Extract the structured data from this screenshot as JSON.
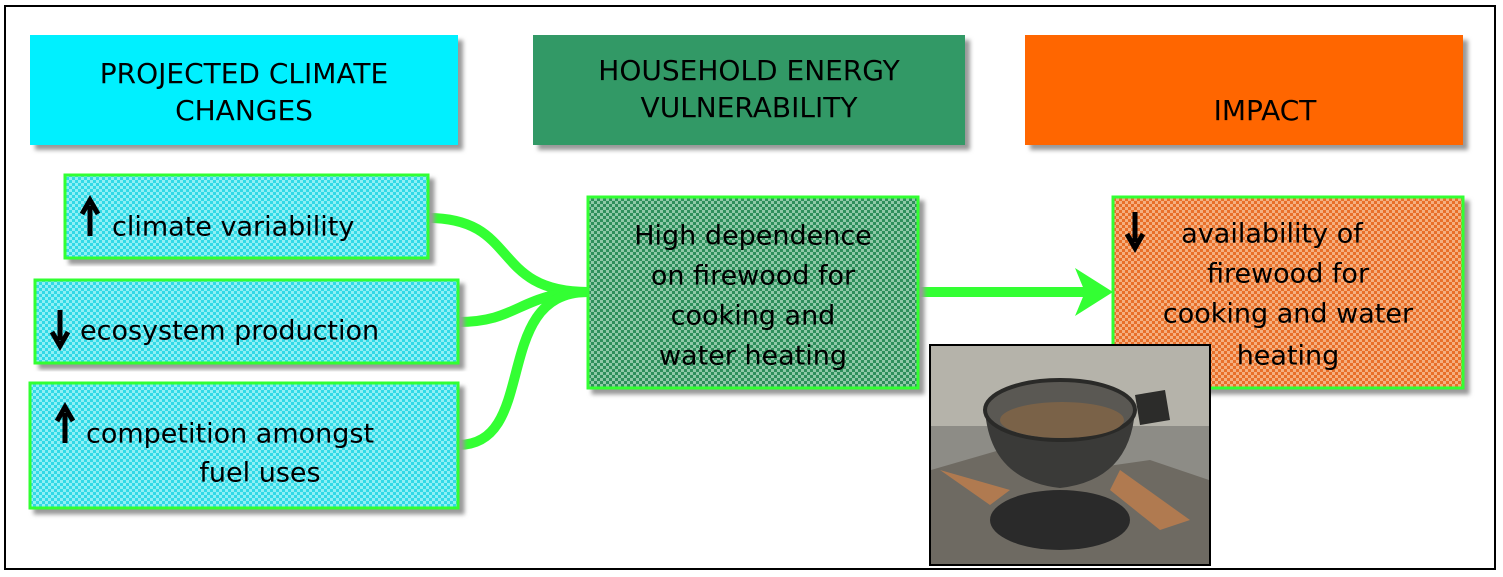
{
  "headers": [
    {
      "lines": [
        "PROJECTED CLIMATE",
        "CHANGES"
      ]
    },
    {
      "lines": [
        "HOUSEHOLD ENERGY",
        "VULNERABILITY"
      ]
    },
    {
      "lines": [
        "IMPACT"
      ]
    }
  ],
  "drivers": [
    {
      "lines": [
        "climate variability"
      ]
    },
    {
      "lines": [
        "ecosystem production"
      ]
    },
    {
      "lines": [
        "competition amongst",
        "fuel uses"
      ]
    }
  ],
  "vulnerability": {
    "lines": [
      "High dependence",
      "on firewood for",
      "cooking and",
      "water heating"
    ]
  },
  "impact": {
    "lines": [
      "availability of",
      "firewood for",
      "cooking and water",
      "heating"
    ]
  }
}
